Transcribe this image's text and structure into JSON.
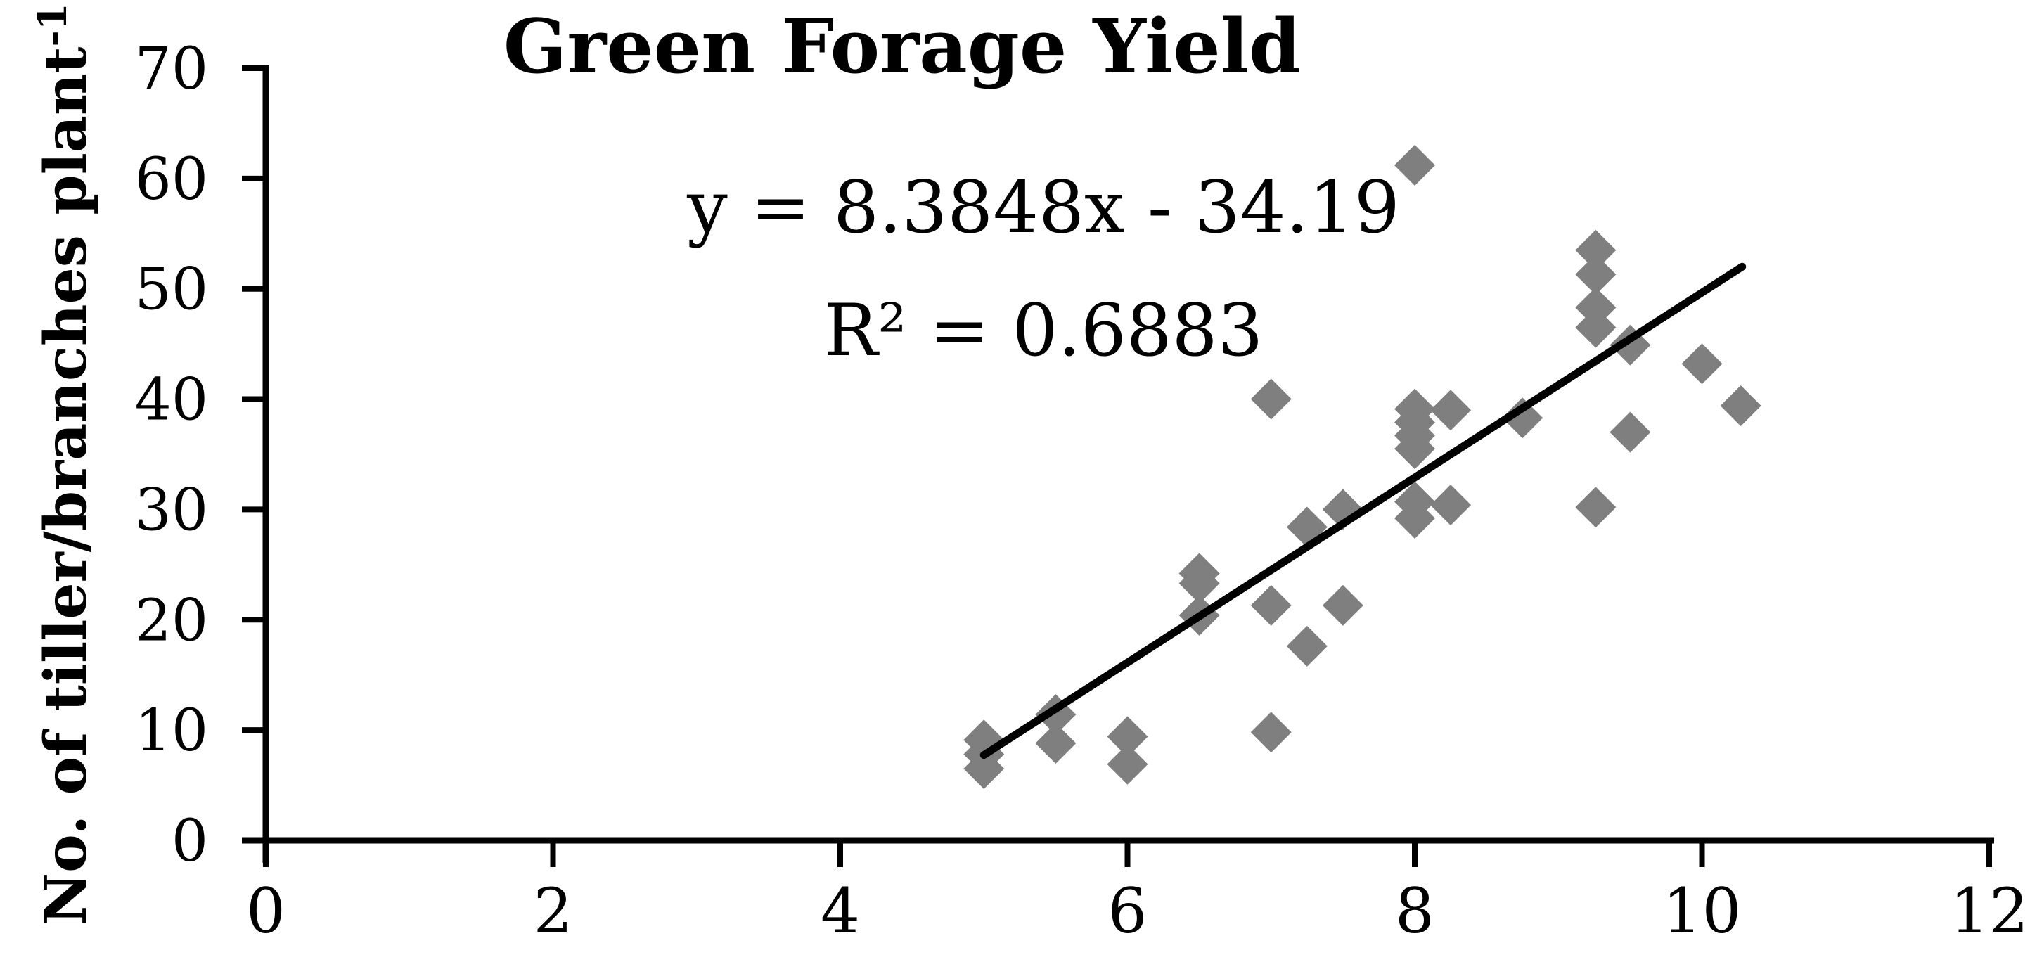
{
  "chart_data": {
    "type": "scatter",
    "title": "Green Forage Yield",
    "xlabel": "",
    "ylabel": "No. of tiller/branches plant⁻¹",
    "ylabel_main": "No. of tiller/branches plant",
    "ylabel_sup": "-1",
    "xlim": [
      0,
      12
    ],
    "ylim": [
      0,
      70
    ],
    "x_ticks": [
      0,
      2,
      4,
      6,
      8,
      10,
      12
    ],
    "y_ticks": [
      0,
      10,
      20,
      30,
      40,
      50,
      60,
      70
    ],
    "grid": false,
    "legend": null,
    "annotation": {
      "equation": "y = 8.3848x - 34.19",
      "r_squared": "R² = 0.6883"
    },
    "trendline": {
      "slope": 8.3848,
      "intercept": -34.19,
      "x_start": 5.0,
      "x_end": 10.28,
      "color": "#000000"
    },
    "marker": {
      "shape": "diamond",
      "color": "#7f7f7f"
    },
    "axis_color": "#000000",
    "points": [
      [
        5.0,
        9.1
      ],
      [
        5.0,
        7.8
      ],
      [
        5.0,
        6.5
      ],
      [
        5.5,
        11.4
      ],
      [
        5.5,
        8.8
      ],
      [
        6.0,
        9.4
      ],
      [
        6.0,
        6.9
      ],
      [
        6.5,
        24.2
      ],
      [
        6.5,
        23.3
      ],
      [
        6.5,
        20.4
      ],
      [
        7.0,
        40.0
      ],
      [
        7.0,
        21.3
      ],
      [
        7.0,
        9.8
      ],
      [
        7.25,
        28.4
      ],
      [
        7.25,
        17.6
      ],
      [
        7.5,
        30.0
      ],
      [
        7.5,
        21.3
      ],
      [
        8.0,
        61.2
      ],
      [
        8.0,
        39.1
      ],
      [
        8.0,
        37.9
      ],
      [
        8.0,
        36.7
      ],
      [
        8.0,
        35.5
      ],
      [
        8.0,
        30.7
      ],
      [
        8.0,
        29.2
      ],
      [
        8.25,
        39.0
      ],
      [
        8.25,
        30.4
      ],
      [
        8.75,
        38.3
      ],
      [
        9.26,
        53.5
      ],
      [
        9.26,
        51.3
      ],
      [
        9.26,
        48.3
      ],
      [
        9.26,
        46.5
      ],
      [
        9.26,
        30.2
      ],
      [
        9.5,
        44.9
      ],
      [
        9.5,
        37.0
      ],
      [
        10.0,
        43.2
      ],
      [
        10.27,
        39.4
      ]
    ]
  }
}
